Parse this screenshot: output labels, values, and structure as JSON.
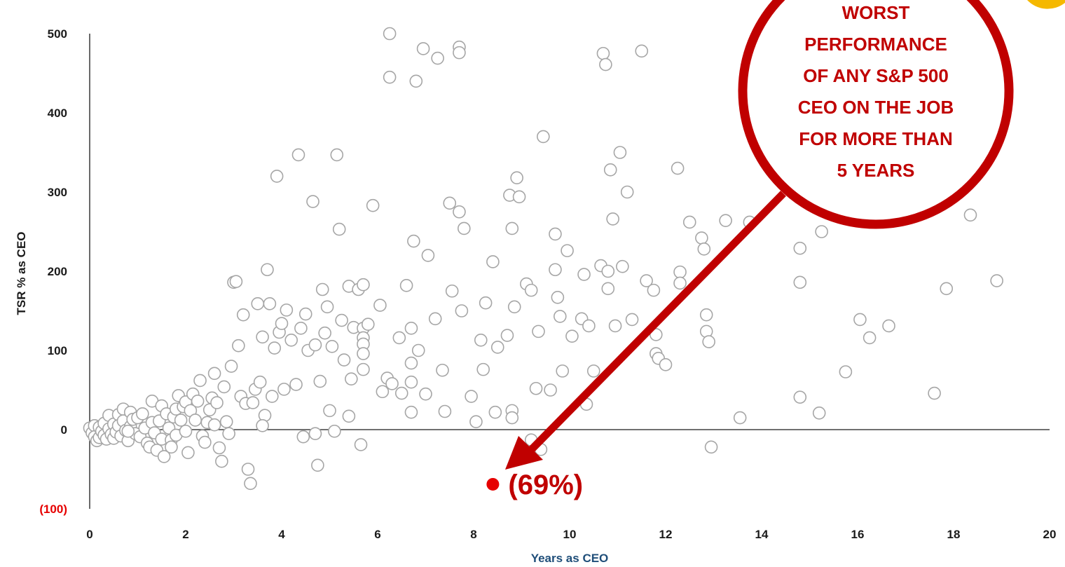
{
  "chart_data": {
    "type": "scatter",
    "xlabel": "Years as CEO",
    "ylabel": "TSR % as CEO",
    "xlim": [
      0,
      20
    ],
    "ylim": [
      -100,
      500
    ],
    "x_ticks": [
      "0",
      "2",
      "4",
      "6",
      "8",
      "10",
      "12",
      "14",
      "16",
      "18",
      "20"
    ],
    "y_ticks": [
      {
        "value": 500,
        "label": "500"
      },
      {
        "value": 400,
        "label": "400"
      },
      {
        "value": 300,
        "label": "300"
      },
      {
        "value": 200,
        "label": "200"
      },
      {
        "value": 100,
        "label": "100"
      },
      {
        "value": 0,
        "label": "0"
      },
      {
        "value": -100,
        "label": "(100)"
      }
    ],
    "grid": false,
    "colors": {
      "points": "#a6a6a6",
      "highlight": "#e60000",
      "callout": "#c00000",
      "negative_tick": "#e60000",
      "x_title": "#1f4e79"
    },
    "points": [
      [
        0.0,
        2
      ],
      [
        0.05,
        -4
      ],
      [
        0.1,
        5
      ],
      [
        0.1,
        -9
      ],
      [
        0.15,
        -14
      ],
      [
        0.2,
        3
      ],
      [
        0.2,
        -10
      ],
      [
        0.25,
        -2
      ],
      [
        0.3,
        8
      ],
      [
        0.3,
        -7
      ],
      [
        0.35,
        -12
      ],
      [
        0.4,
        18
      ],
      [
        0.4,
        1
      ],
      [
        0.45,
        -6
      ],
      [
        0.5,
        7
      ],
      [
        0.5,
        -11
      ],
      [
        0.55,
        -3
      ],
      [
        0.6,
        19
      ],
      [
        0.6,
        5
      ],
      [
        0.65,
        -8
      ],
      [
        0.7,
        26
      ],
      [
        0.7,
        11
      ],
      [
        0.75,
        -1
      ],
      [
        0.8,
        -14
      ],
      [
        0.85,
        22
      ],
      [
        0.85,
        4
      ],
      [
        0.9,
        13
      ],
      [
        0.95,
        -5
      ],
      [
        1.0,
        15
      ],
      [
        1.05,
        -9
      ],
      [
        1.1,
        20
      ],
      [
        1.15,
        2
      ],
      [
        1.2,
        -17
      ],
      [
        1.25,
        -22
      ],
      [
        1.3,
        36
      ],
      [
        1.3,
        9
      ],
      [
        1.35,
        -4
      ],
      [
        1.4,
        -26
      ],
      [
        1.45,
        11
      ],
      [
        1.5,
        30
      ],
      [
        1.5,
        -12
      ],
      [
        1.55,
        -34
      ],
      [
        1.6,
        20
      ],
      [
        1.65,
        2
      ],
      [
        1.7,
        -13
      ],
      [
        1.75,
        16
      ],
      [
        1.8,
        26
      ],
      [
        1.8,
        -7
      ],
      [
        1.85,
        43
      ],
      [
        1.9,
        12
      ],
      [
        1.95,
        29
      ],
      [
        2.0,
        35
      ],
      [
        2.0,
        -2
      ],
      [
        2.05,
        -29
      ],
      [
        2.1,
        24
      ],
      [
        2.15,
        45
      ],
      [
        2.2,
        12
      ],
      [
        2.25,
        36
      ],
      [
        2.3,
        62
      ],
      [
        2.35,
        -8
      ],
      [
        2.4,
        -16
      ],
      [
        2.45,
        9
      ],
      [
        2.5,
        25
      ],
      [
        2.55,
        40
      ],
      [
        2.6,
        71
      ],
      [
        2.65,
        34
      ],
      [
        2.7,
        -23
      ],
      [
        2.75,
        -40
      ],
      [
        2.8,
        54
      ],
      [
        2.85,
        10
      ],
      [
        2.9,
        -5
      ],
      [
        2.95,
        80
      ],
      [
        3.0,
        186
      ],
      [
        3.05,
        187
      ],
      [
        3.1,
        106
      ],
      [
        3.15,
        42
      ],
      [
        3.2,
        145
      ],
      [
        3.25,
        33
      ],
      [
        3.3,
        -50
      ],
      [
        3.35,
        -68
      ],
      [
        3.4,
        34
      ],
      [
        3.45,
        51
      ],
      [
        3.5,
        159
      ],
      [
        3.55,
        60
      ],
      [
        3.6,
        117
      ],
      [
        3.65,
        18
      ],
      [
        3.7,
        202
      ],
      [
        3.75,
        159
      ],
      [
        3.8,
        42
      ],
      [
        3.85,
        103
      ],
      [
        3.9,
        320
      ],
      [
        3.95,
        123
      ],
      [
        4.0,
        134
      ],
      [
        4.05,
        51
      ],
      [
        4.1,
        151
      ],
      [
        4.2,
        113
      ],
      [
        4.3,
        57
      ],
      [
        4.35,
        347
      ],
      [
        4.4,
        128
      ],
      [
        4.45,
        -9
      ],
      [
        4.5,
        146
      ],
      [
        4.55,
        100
      ],
      [
        4.65,
        288
      ],
      [
        4.7,
        107
      ],
      [
        4.75,
        -45
      ],
      [
        4.8,
        61
      ],
      [
        4.85,
        177
      ],
      [
        4.9,
        122
      ],
      [
        4.95,
        155
      ],
      [
        5.0,
        24
      ],
      [
        5.05,
        105
      ],
      [
        5.1,
        -2
      ],
      [
        5.15,
        347
      ],
      [
        5.2,
        253
      ],
      [
        5.25,
        138
      ],
      [
        5.3,
        88
      ],
      [
        5.4,
        181
      ],
      [
        5.45,
        64
      ],
      [
        5.5,
        129
      ],
      [
        5.6,
        177
      ],
      [
        5.65,
        -19
      ],
      [
        5.7,
        183
      ],
      [
        5.7,
        128
      ],
      [
        5.7,
        116
      ],
      [
        5.7,
        108
      ],
      [
        5.7,
        96
      ],
      [
        5.7,
        76
      ],
      [
        5.8,
        133
      ],
      [
        5.9,
        283
      ],
      [
        6.05,
        157
      ],
      [
        6.1,
        48
      ],
      [
        6.2,
        65
      ],
      [
        6.25,
        500
      ],
      [
        6.25,
        445
      ],
      [
        6.3,
        58
      ],
      [
        6.45,
        116
      ],
      [
        6.5,
        46
      ],
      [
        6.6,
        182
      ],
      [
        6.7,
        128
      ],
      [
        6.7,
        84
      ],
      [
        6.7,
        22
      ],
      [
        6.75,
        238
      ],
      [
        6.8,
        440
      ],
      [
        6.85,
        100
      ],
      [
        6.95,
        481
      ],
      [
        7.0,
        45
      ],
      [
        7.05,
        220
      ],
      [
        7.2,
        140
      ],
      [
        7.25,
        469
      ],
      [
        7.35,
        75
      ],
      [
        7.4,
        23
      ],
      [
        7.5,
        286
      ],
      [
        7.55,
        175
      ],
      [
        7.7,
        483
      ],
      [
        7.7,
        476
      ],
      [
        7.7,
        275
      ],
      [
        7.75,
        150
      ],
      [
        7.8,
        254
      ],
      [
        7.95,
        42
      ],
      [
        8.05,
        10
      ],
      [
        8.15,
        113
      ],
      [
        8.2,
        76
      ],
      [
        8.25,
        160
      ],
      [
        8.4,
        212
      ],
      [
        8.45,
        22
      ],
      [
        8.5,
        104
      ],
      [
        8.7,
        119
      ],
      [
        8.75,
        296
      ],
      [
        8.8,
        254
      ],
      [
        8.8,
        24
      ],
      [
        8.8,
        15
      ],
      [
        8.85,
        155
      ],
      [
        8.9,
        318
      ],
      [
        8.95,
        294
      ],
      [
        9.1,
        184
      ],
      [
        9.2,
        176
      ],
      [
        9.3,
        52
      ],
      [
        9.35,
        124
      ],
      [
        9.45,
        370
      ],
      [
        9.6,
        50
      ],
      [
        9.7,
        247
      ],
      [
        9.7,
        202
      ],
      [
        9.75,
        167
      ],
      [
        9.8,
        143
      ],
      [
        9.85,
        74
      ],
      [
        9.95,
        226
      ],
      [
        10.05,
        118
      ],
      [
        10.25,
        140
      ],
      [
        10.3,
        196
      ],
      [
        10.4,
        131
      ],
      [
        10.5,
        74
      ],
      [
        10.65,
        207
      ],
      [
        10.7,
        475
      ],
      [
        10.75,
        461
      ],
      [
        10.8,
        200
      ],
      [
        10.8,
        178
      ],
      [
        10.85,
        328
      ],
      [
        10.9,
        266
      ],
      [
        10.95,
        131
      ],
      [
        11.05,
        350
      ],
      [
        11.1,
        206
      ],
      [
        11.2,
        300
      ],
      [
        11.3,
        139
      ],
      [
        11.5,
        478
      ],
      [
        11.6,
        188
      ],
      [
        11.75,
        176
      ],
      [
        11.8,
        120
      ],
      [
        11.8,
        96
      ],
      [
        11.85,
        90
      ],
      [
        12.0,
        82
      ],
      [
        12.25,
        330
      ],
      [
        12.3,
        199
      ],
      [
        12.3,
        185
      ],
      [
        12.5,
        262
      ],
      [
        12.75,
        242
      ],
      [
        12.8,
        228
      ],
      [
        12.85,
        145
      ],
      [
        12.85,
        124
      ],
      [
        12.9,
        111
      ],
      [
        12.95,
        -22
      ],
      [
        13.25,
        264
      ],
      [
        13.55,
        15
      ],
      [
        13.75,
        262
      ],
      [
        14.8,
        229
      ],
      [
        14.8,
        186
      ],
      [
        14.8,
        41
      ],
      [
        15.2,
        21
      ],
      [
        15.25,
        250
      ],
      [
        15.75,
        73
      ],
      [
        16.05,
        139
      ],
      [
        16.25,
        116
      ],
      [
        16.65,
        131
      ],
      [
        17.6,
        46
      ],
      [
        17.85,
        178
      ],
      [
        18.35,
        271
      ],
      [
        18.9,
        188
      ],
      [
        9.2,
        -13
      ],
      [
        9.4,
        -25
      ],
      [
        3.6,
        5
      ],
      [
        2.6,
        6
      ],
      [
        1.7,
        -22
      ],
      [
        0.8,
        -2
      ],
      [
        4.7,
        -5
      ],
      [
        5.4,
        17
      ],
      [
        6.7,
        60
      ],
      [
        10.35,
        32
      ]
    ],
    "highlight": {
      "x": 8.4,
      "y": -69,
      "label": "(69%)"
    },
    "annotation": [
      "WORST",
      "PERFORMANCE",
      "OF ANY S&P 500",
      "CEO ON THE JOB",
      "FOR MORE THAN",
      "5 YEARS"
    ]
  }
}
